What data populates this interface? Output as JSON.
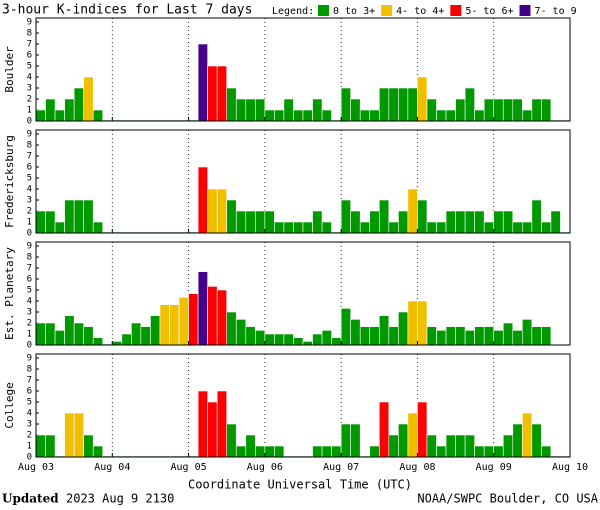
{
  "chart_data": {
    "type": "bar",
    "title": "3-hour K-indices for Last 7 days",
    "legend_title": "Legend:",
    "legend": [
      {
        "label": "0 to 3+",
        "color": "#009900"
      },
      {
        "label": "4- to 4+",
        "color": "#f0c000"
      },
      {
        "label": "5- to 6+",
        "color": "#ff0000"
      },
      {
        "label": "7- to 9",
        "color": "#440088"
      }
    ],
    "x_label": "Coordinate Universal Time (UTC)",
    "xlim": [
      0,
      56
    ],
    "xticks": [
      {
        "value": 0,
        "label": "Aug 03"
      },
      {
        "value": 8,
        "label": "Aug 04"
      },
      {
        "value": 16,
        "label": "Aug 05"
      },
      {
        "value": 24,
        "label": "Aug 06"
      },
      {
        "value": 32,
        "label": "Aug 07"
      },
      {
        "value": 40,
        "label": "Aug 08"
      },
      {
        "value": 48,
        "label": "Aug 09"
      },
      {
        "value": 56,
        "label": "Aug 10"
      }
    ],
    "ylim": [
      0,
      9
    ],
    "yticks": [
      0,
      1,
      2,
      3,
      4,
      5,
      6,
      7,
      8,
      9
    ],
    "grid": true,
    "panels": [
      {
        "name": "Boulder",
        "values": [
          1,
          2,
          1,
          2,
          3,
          4,
          1,
          0,
          0,
          0,
          0,
          0,
          0,
          0,
          0,
          0,
          0,
          7,
          5,
          5,
          3,
          2,
          2,
          2,
          1,
          1,
          2,
          1,
          1,
          2,
          1,
          0,
          3,
          2,
          1,
          1,
          3,
          3,
          3,
          3,
          4,
          2,
          1,
          1,
          2,
          3,
          1,
          2,
          2,
          2,
          2,
          1,
          2,
          2,
          0,
          0
        ]
      },
      {
        "name": "Fredericksburg",
        "values": [
          2,
          2,
          1,
          3,
          3,
          3,
          1,
          0,
          0,
          0,
          0,
          0,
          0,
          0,
          0,
          0,
          0,
          6,
          4,
          4,
          3,
          2,
          2,
          2,
          2,
          1,
          1,
          1,
          1,
          2,
          1,
          0,
          3,
          2,
          1,
          2,
          3,
          1,
          2,
          4,
          3,
          1,
          1,
          2,
          2,
          2,
          2,
          1,
          2,
          2,
          1,
          1,
          3,
          1,
          2,
          0
        ]
      },
      {
        "name": "Est. Planetary",
        "values": [
          2,
          2,
          1.33,
          2.67,
          2,
          1.67,
          0.67,
          0,
          0.33,
          1,
          2,
          1.67,
          2.67,
          3.67,
          3.67,
          4.33,
          4.67,
          6.67,
          5.33,
          5,
          3,
          2.33,
          1.67,
          1.33,
          1,
          1,
          1,
          0.67,
          0.33,
          1,
          1.33,
          0.67,
          3.33,
          2.33,
          1.67,
          1.67,
          2.67,
          1.67,
          3,
          4,
          4,
          1.67,
          1.33,
          1.67,
          1.67,
          1.33,
          1.67,
          1.67,
          1.33,
          2,
          1.33,
          2.33,
          1.67,
          1.67,
          null,
          null
        ]
      },
      {
        "name": "College",
        "values": [
          2,
          2,
          0,
          4,
          4,
          2,
          1,
          0,
          0,
          0,
          0,
          0,
          0,
          0,
          0,
          0,
          0,
          6,
          5,
          6,
          3,
          1,
          2,
          1,
          1,
          1,
          0,
          0,
          0,
          1,
          1,
          1,
          3,
          3,
          0,
          1,
          5,
          2,
          3,
          4,
          5,
          2,
          1,
          2,
          2,
          2,
          1,
          1,
          1,
          2,
          3,
          4,
          3,
          1,
          0,
          0
        ]
      }
    ],
    "footer": {
      "updated_label": "Updated",
      "updated": "2023 Aug  9 2130",
      "source": "NOAA/SWPC Boulder, CO USA"
    }
  }
}
